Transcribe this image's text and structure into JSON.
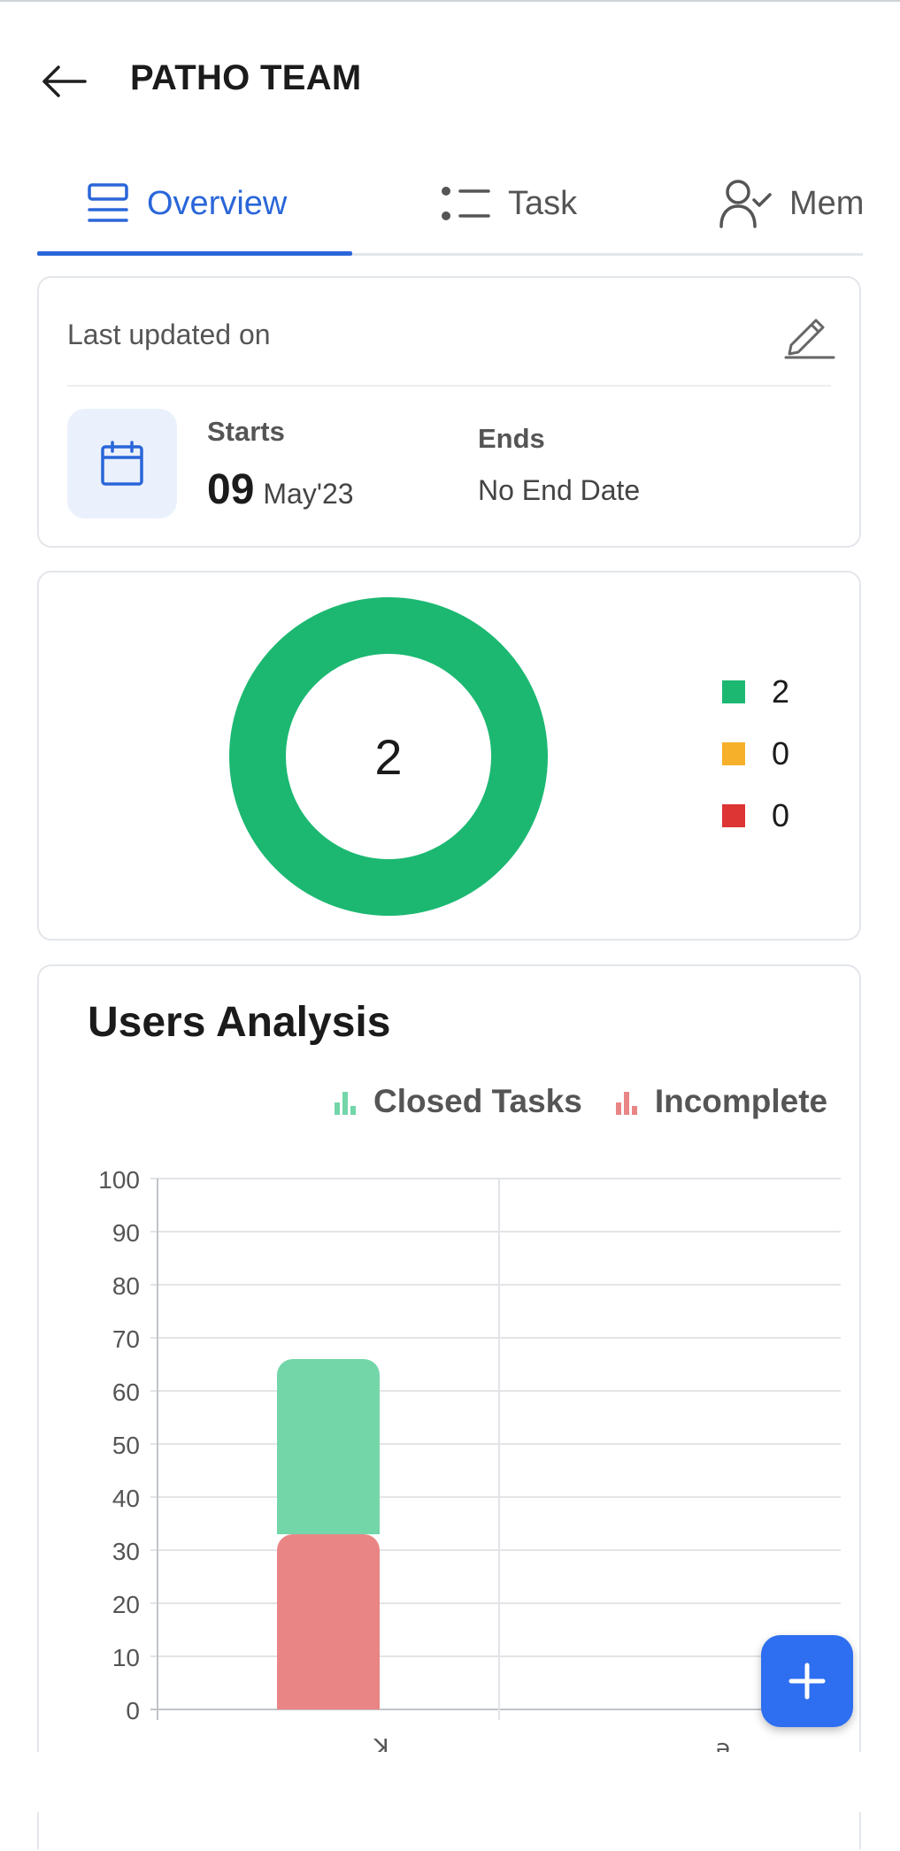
{
  "header": {
    "title": "PATHO TEAM",
    "back_icon": "arrow-left-icon"
  },
  "tabs": [
    {
      "label": "Overview",
      "icon": "overview-icon",
      "active": true
    },
    {
      "label": "Task",
      "icon": "task-list-icon",
      "active": false
    },
    {
      "label": "Mem",
      "icon": "member-check-icon",
      "active": false
    }
  ],
  "dates_card": {
    "last_updated_label": "Last updated on",
    "starts_label": "Starts",
    "starts_day": "09",
    "starts_month": "May'23",
    "ends_label": "Ends",
    "ends_value": "No End Date"
  },
  "status_donut": {
    "center_value": "2",
    "legend": [
      {
        "value": "2",
        "color": "#1cb872"
      },
      {
        "value": "0",
        "color": "#f6b02a"
      },
      {
        "value": "0",
        "color": "#dd3434"
      }
    ]
  },
  "chart_data": {
    "type": "bar",
    "stacked": true,
    "title": "Users Analysis",
    "legend": [
      "Closed Tasks",
      "Incomplete"
    ],
    "categories": [
      "ꓘ",
      "ə"
    ],
    "series": [
      {
        "name": "Incomplete",
        "color": "#e98585",
        "values": [
          33,
          0
        ]
      },
      {
        "name": "Closed Tasks",
        "color": "#72d6a9",
        "values": [
          33,
          0
        ]
      }
    ],
    "ylim": [
      0,
      100
    ],
    "yticks": [
      "0",
      "10",
      "20",
      "30",
      "40",
      "50",
      "60",
      "70",
      "80",
      "90",
      "100"
    ],
    "grid": true
  },
  "fab": {
    "label": "+",
    "icon": "plus-icon"
  }
}
